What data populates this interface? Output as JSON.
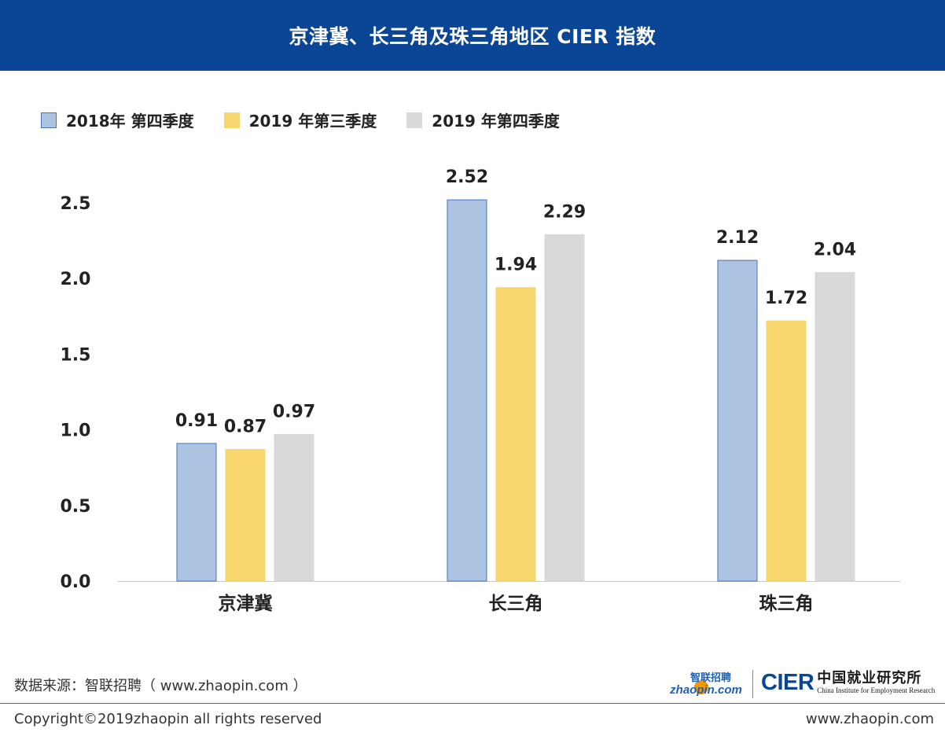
{
  "title": "京津冀、长三角及珠三角地区 CIER 指数",
  "legend": [
    {
      "label": "2018年 第四季度",
      "color": "#adc3e2",
      "border": "#4a73b4"
    },
    {
      "label": "2019 年第三季度",
      "color": "#f7d66d",
      "border": "#f7d66d"
    },
    {
      "label": "2019 年第四季度",
      "color": "#d9d9d9",
      "border": "#d9d9d9"
    }
  ],
  "chart_data": {
    "type": "bar",
    "title": "京津冀、长三角及珠三角地区 CIER 指数",
    "categories": [
      "京津冀",
      "长三角",
      "珠三角"
    ],
    "series": [
      {
        "name": "2018年 第四季度",
        "values": [
          0.91,
          2.52,
          2.12
        ],
        "labels": [
          "0.91",
          "2.52",
          "2.12"
        ]
      },
      {
        "name": "2019 年第三季度",
        "values": [
          0.87,
          1.94,
          1.72
        ],
        "labels": [
          "0.87",
          "1.94",
          "1.72"
        ]
      },
      {
        "name": "2019 年第四季度",
        "values": [
          0.97,
          2.29,
          2.04
        ],
        "labels": [
          "0.97",
          "2.29",
          "2.04"
        ]
      }
    ],
    "yticks": [
      "0.0",
      "0.5",
      "1.0",
      "1.5",
      "2.0",
      "2.5"
    ],
    "ylim": [
      0,
      2.5
    ],
    "grid": false,
    "legend_position": "top-left"
  },
  "footer": {
    "source": "数据来源：智联招聘（ www.zhaopin.com ）",
    "copyright": "Copyright©2019zhaopin all rights reserved",
    "site": "www.zhaopin.com",
    "logo_zhaopin_cn": "智联招聘",
    "logo_zhaopin_en": "zhaopin.com",
    "logo_cier_mark": "CIER",
    "logo_cier_cn": "中国就业研究所",
    "logo_cier_en": "China Institute for Employment Research"
  }
}
